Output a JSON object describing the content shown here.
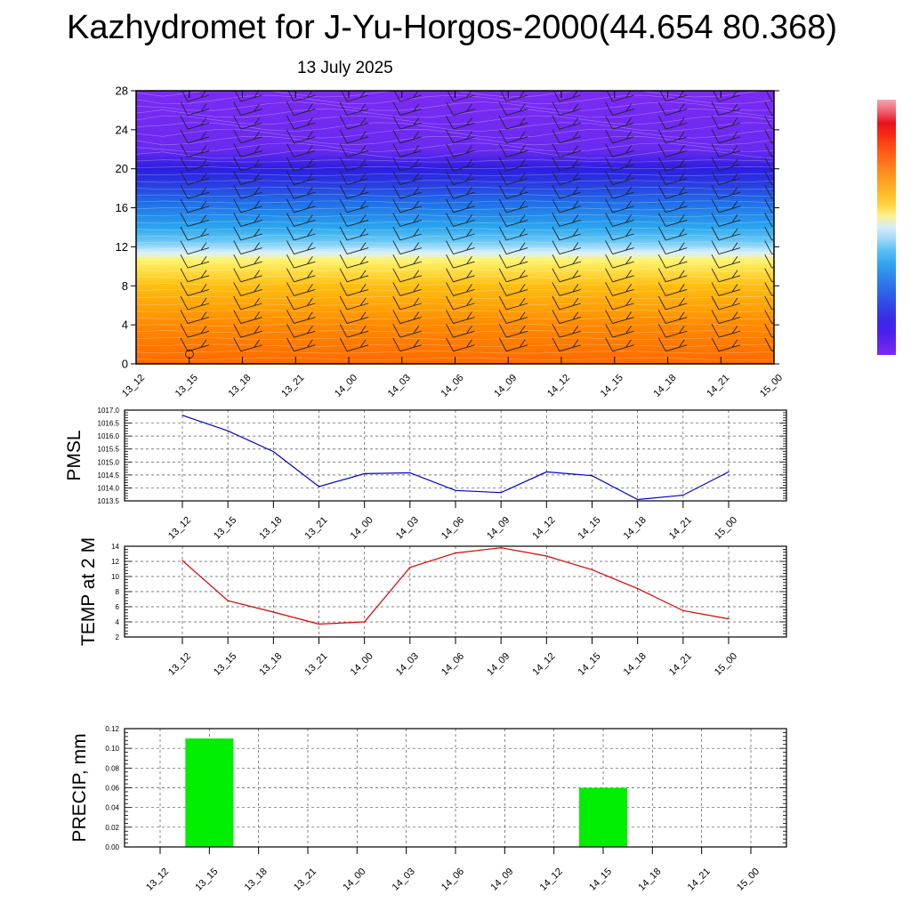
{
  "title": "Kazhydromet for J-Yu-Horgos-2000(44.654 80.368)",
  "subtitle": "13 July 2025",
  "time_labels": [
    "13_12",
    "13_15",
    "13_18",
    "13_21",
    "14_00",
    "14_03",
    "14_06",
    "14_09",
    "14_12",
    "14_15",
    "14_18",
    "14_21",
    "15_00"
  ],
  "chart_data": [
    {
      "type": "heatmap",
      "description_free": true,
      "x": [
        "13_12",
        "13_15",
        "13_18",
        "13_21",
        "14_00",
        "14_03",
        "14_06",
        "14_09",
        "14_12",
        "14_15",
        "14_18",
        "14_21",
        "15_00"
      ],
      "y_ticks": [
        0,
        4,
        8,
        12,
        16,
        20,
        24,
        28
      ],
      "ylim": [
        0,
        28
      ],
      "colormap_stops": [
        {
          "level": 0,
          "color": "#ff6a00"
        },
        {
          "level": 4,
          "color": "#ff8a00"
        },
        {
          "level": 8,
          "color": "#ffbe10"
        },
        {
          "level": 10.6,
          "color": "#fff36a"
        },
        {
          "level": 11.4,
          "color": "#d8f0ff"
        },
        {
          "level": 12.5,
          "color": "#6ec9f5"
        },
        {
          "level": 14,
          "color": "#2aa6ee"
        },
        {
          "level": 16.5,
          "color": "#1f6fe8"
        },
        {
          "level": 18.5,
          "color": "#2a3ae0"
        },
        {
          "level": 20,
          "color": "#2b1ee0"
        },
        {
          "level": 22,
          "color": "#6a2af0"
        },
        {
          "level": 28,
          "color": "#7b2bf2"
        }
      ],
      "colorbar_colors": [
        "#7a2af2",
        "#6324f0",
        "#4a1ff0",
        "#3a2ae6",
        "#3340e6",
        "#2f59e8",
        "#2f73ea",
        "#2f8ded",
        "#35a8f0",
        "#5cc0f4",
        "#9fd8f8",
        "#d6ecfa",
        "#fff08c",
        "#ffd23c",
        "#ffb92a",
        "#ff9f22",
        "#ff851c",
        "#ff6818",
        "#ff4b14",
        "#f72a10",
        "#e8121e",
        "#f06070",
        "#f6a8b0"
      ],
      "wind_barbs": "shown"
    },
    {
      "type": "line",
      "ylabel": "PMSL",
      "x": [
        "13_12",
        "13_15",
        "13_18",
        "13_21",
        "14_00",
        "14_03",
        "14_06",
        "14_09",
        "14_12",
        "14_15",
        "14_18",
        "14_21",
        "15_00"
      ],
      "y": [
        1016.8,
        1016.2,
        1015.4,
        1014.05,
        1014.55,
        1014.58,
        1013.9,
        1013.82,
        1014.62,
        1014.47,
        1013.55,
        1013.72,
        1014.62
      ],
      "ylim": [
        1013.5,
        1017.0
      ],
      "yticks": [
        "1013.5",
        "1014.0",
        "1014.5",
        "1015.0",
        "1015.5",
        "1016.0",
        "1016.5",
        "1017.0"
      ],
      "color": "#0000cc",
      "grid": true
    },
    {
      "type": "line",
      "ylabel": "TEMP at 2 M",
      "x": [
        "13_12",
        "13_15",
        "13_18",
        "13_21",
        "14_00",
        "14_03",
        "14_06",
        "14_09",
        "14_12",
        "14_15",
        "14_18",
        "14_21",
        "15_00"
      ],
      "y": [
        12.1,
        6.8,
        5.3,
        3.7,
        4.0,
        11.2,
        13.1,
        13.8,
        12.7,
        10.9,
        8.4,
        5.5,
        4.4
      ],
      "ylim": [
        2,
        14
      ],
      "yticks": [
        "2",
        "4",
        "6",
        "8",
        "10",
        "12",
        "14"
      ],
      "color": "#dd0000",
      "grid": true
    },
    {
      "type": "bar",
      "ylabel": "PRECIP, mm",
      "categories": [
        "13_12",
        "13_15",
        "13_18",
        "13_21",
        "14_00",
        "14_03",
        "14_06",
        "14_09",
        "14_12",
        "14_15",
        "14_18",
        "14_21",
        "15_00"
      ],
      "values": [
        0,
        0.11,
        0,
        0,
        0,
        0,
        0,
        0,
        0,
        0.06,
        0,
        0,
        0
      ],
      "ylim": [
        0,
        0.12
      ],
      "yticks": [
        "0.00",
        "0.02",
        "0.04",
        "0.06",
        "0.08",
        "0.10",
        "0.12"
      ],
      "color": "#00ee00",
      "grid": true
    }
  ]
}
